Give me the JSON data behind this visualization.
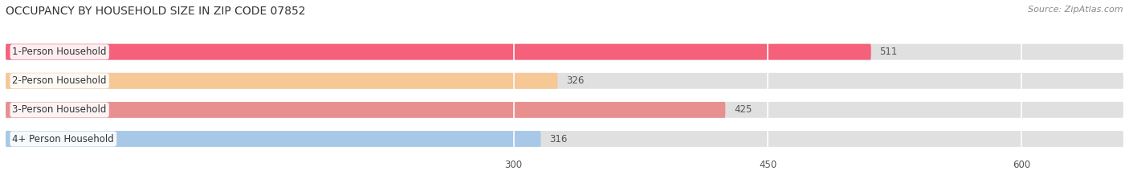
{
  "title": "OCCUPANCY BY HOUSEHOLD SIZE IN ZIP CODE 07852",
  "source": "Source: ZipAtlas.com",
  "categories": [
    "1-Person Household",
    "2-Person Household",
    "3-Person Household",
    "4+ Person Household"
  ],
  "values": [
    511,
    326,
    425,
    316
  ],
  "bar_colors": [
    "#f5607a",
    "#f5c896",
    "#e89090",
    "#a8c8e8"
  ],
  "xlim": [
    0,
    660
  ],
  "xticks": [
    300,
    450,
    600
  ],
  "bg_color": "#ffffff",
  "bar_bg_color": "#e0e0e0",
  "title_fontsize": 10,
  "source_fontsize": 8,
  "label_fontsize": 8.5,
  "value_fontsize": 8.5,
  "bar_height": 0.55
}
